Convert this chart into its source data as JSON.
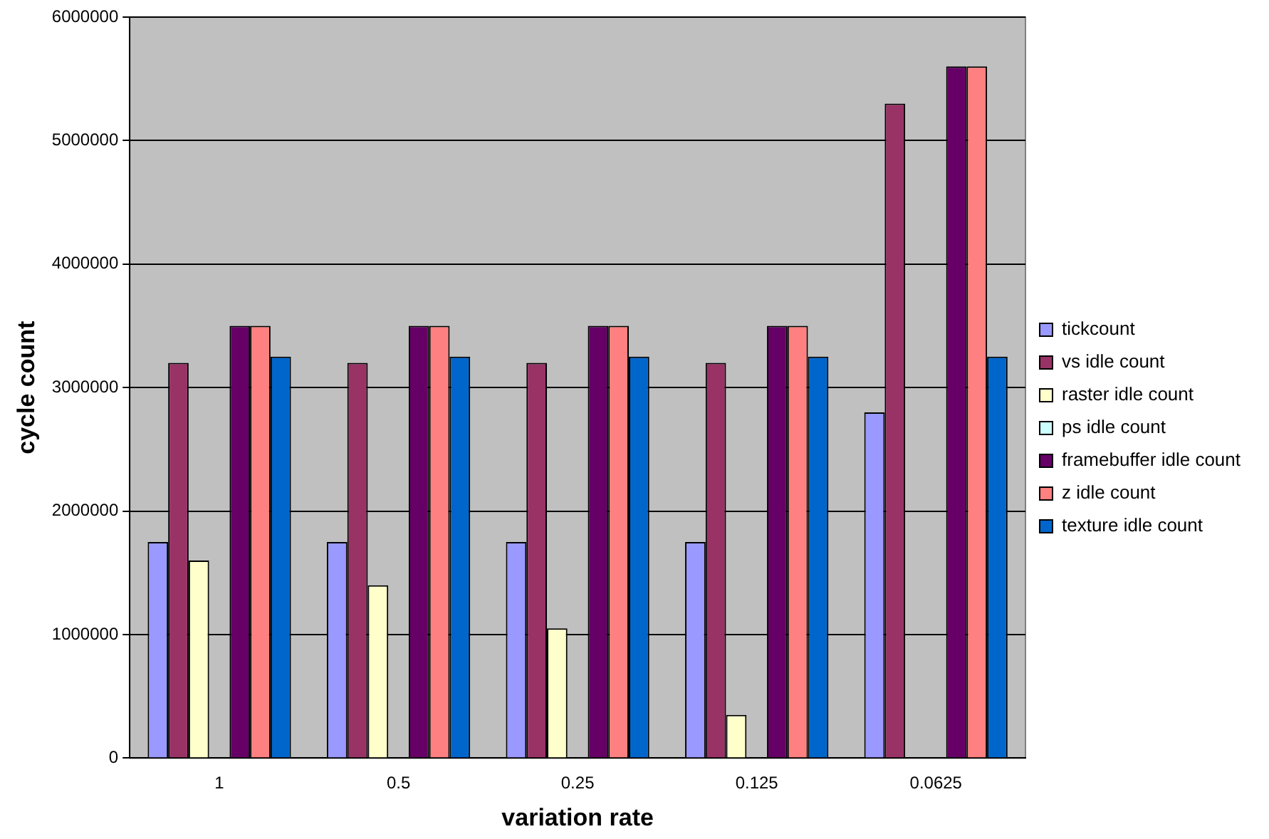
{
  "chart_data": {
    "type": "bar",
    "xlabel": "variation rate",
    "ylabel": "cycle count",
    "categories": [
      "1",
      "0.5",
      "0.25",
      "0.125",
      "0.0625"
    ],
    "series": [
      {
        "name": "tickcount",
        "color": "#9999ff",
        "values": [
          1750000,
          1750000,
          1750000,
          1750000,
          2800000
        ]
      },
      {
        "name": "vs idle count",
        "color": "#993366",
        "values": [
          3200000,
          3200000,
          3200000,
          3200000,
          5300000
        ]
      },
      {
        "name": "raster idle count",
        "color": "#ffffcc",
        "values": [
          1600000,
          1400000,
          1050000,
          350000,
          0
        ]
      },
      {
        "name": "ps idle count",
        "color": "#ccffff",
        "values": [
          0,
          0,
          0,
          0,
          0
        ]
      },
      {
        "name": "framebuffer idle count",
        "color": "#660066",
        "values": [
          3500000,
          3500000,
          3500000,
          3500000,
          5600000
        ]
      },
      {
        "name": "z idle count",
        "color": "#ff8080",
        "values": [
          3500000,
          3500000,
          3500000,
          3500000,
          5600000
        ]
      },
      {
        "name": "texture idle count",
        "color": "#0066cc",
        "values": [
          3250000,
          3250000,
          3250000,
          3250000,
          3250000
        ]
      }
    ],
    "ylim": [
      0,
      6000000
    ],
    "yticks": [
      0,
      1000000,
      2000000,
      3000000,
      4000000,
      5000000,
      6000000
    ],
    "grid": "y",
    "legend": "right"
  }
}
